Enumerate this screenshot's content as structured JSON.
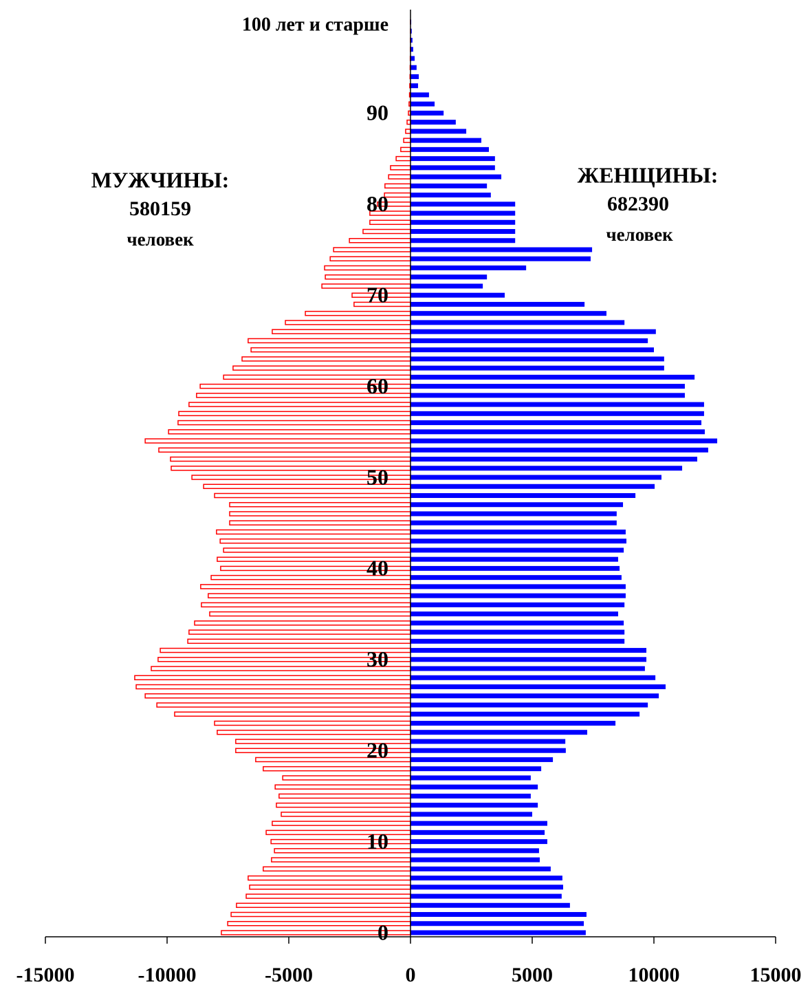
{
  "chart_data": {
    "type": "pyramid",
    "categories": [
      "0",
      null,
      null,
      null,
      null,
      null,
      null,
      null,
      null,
      null,
      "10",
      null,
      null,
      null,
      null,
      null,
      null,
      null,
      null,
      null,
      "20",
      null,
      null,
      null,
      null,
      null,
      null,
      null,
      null,
      null,
      "30",
      null,
      null,
      null,
      null,
      null,
      null,
      null,
      null,
      null,
      "40",
      null,
      null,
      null,
      null,
      null,
      null,
      null,
      null,
      null,
      "50",
      null,
      null,
      null,
      null,
      null,
      null,
      null,
      null,
      null,
      "60",
      null,
      null,
      null,
      null,
      null,
      null,
      null,
      null,
      null,
      "70",
      null,
      null,
      null,
      null,
      null,
      null,
      null,
      null,
      null,
      "80",
      null,
      null,
      null,
      null,
      null,
      null,
      null,
      null,
      null,
      "90",
      null,
      null,
      null,
      null,
      null,
      null,
      null,
      null,
      null,
      "100 лет и старше"
    ],
    "series": [
      {
        "name": "МУЖЧИНЫ:",
        "color": "#ff0000",
        "values": [
          -7770,
          -7510,
          -7370,
          -7150,
          -6750,
          -6610,
          -6670,
          -6050,
          -5710,
          -5590,
          -5730,
          -5930,
          -5680,
          -5310,
          -5510,
          -5400,
          -5560,
          -5250,
          -6050,
          -6360,
          -7180,
          -7180,
          -7940,
          -8050,
          -9690,
          -10420,
          -10900,
          -11270,
          -11330,
          -10650,
          -10370,
          -10280,
          -9150,
          -9100,
          -8870,
          -8250,
          -8590,
          -8310,
          -8620,
          -8190,
          -7800,
          -7940,
          -7680,
          -7820,
          -7970,
          -7430,
          -7430,
          -7430,
          -8050,
          -8500,
          -8980,
          -9830,
          -9860,
          -10340,
          -10900,
          -9940,
          -9550,
          -9520,
          -9100,
          -8790,
          -8640,
          -7680,
          -7290,
          -6920,
          -6550,
          -6670,
          -5680,
          -5140,
          -4320,
          -2320,
          -2400,
          -3640,
          -3500,
          -3530,
          -3300,
          -3160,
          -2510,
          -1950,
          -1670,
          -1670,
          -1360,
          -1070,
          -1050,
          -900,
          -820,
          -590,
          -400,
          -280,
          -200,
          -140,
          -85,
          -60,
          -40,
          -30,
          -20,
          -15,
          -10,
          -7,
          -5,
          -3,
          -2
        ]
      },
      {
        "name": "ЖЕНЩИНЫ:",
        "color": "#0000ff",
        "values": [
          7200,
          7120,
          7230,
          6550,
          6210,
          6270,
          6240,
          5760,
          5310,
          5280,
          5620,
          5510,
          5620,
          5000,
          5230,
          4940,
          5230,
          4940,
          5370,
          5850,
          6380,
          6360,
          7260,
          8420,
          9410,
          9750,
          10200,
          10480,
          10060,
          9630,
          9690,
          9690,
          8790,
          8790,
          8760,
          8530,
          8790,
          8840,
          8840,
          8670,
          8590,
          8530,
          8760,
          8870,
          8840,
          8470,
          8470,
          8730,
          9240,
          10030,
          10310,
          11160,
          11780,
          12230,
          12600,
          12090,
          11950,
          12060,
          12060,
          11270,
          11270,
          11670,
          10420,
          10420,
          10000,
          9750,
          10080,
          8790,
          8050,
          7150,
          3870,
          2970,
          3140,
          4750,
          7400,
          7460,
          4300,
          4300,
          4300,
          4300,
          4300,
          3300,
          3140,
          3730,
          3470,
          3470,
          3220,
          2910,
          2290,
          1860,
          1360,
          990,
          760,
          310,
          340,
          250,
          170,
          110,
          80,
          50,
          30
        ]
      }
    ],
    "annotations": [
      "580159",
      "человек",
      "682390",
      "человек"
    ],
    "xlim": [
      -15000,
      15000
    ],
    "xticks": [
      -15000,
      -10000,
      -5000,
      0,
      5000,
      10000,
      15000
    ]
  }
}
